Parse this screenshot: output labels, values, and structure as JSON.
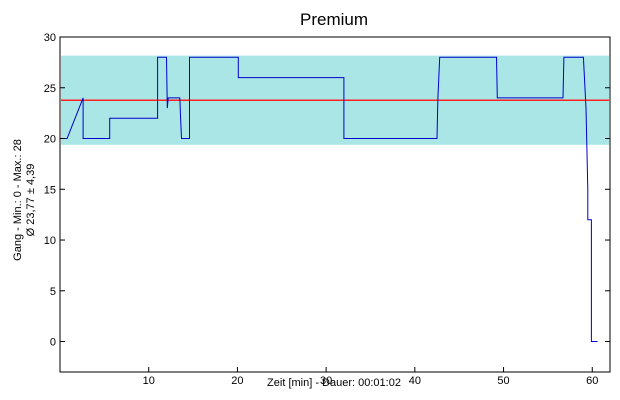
{
  "chart_data": {
    "type": "line",
    "title": "Premium",
    "xlabel": "Zeit [min] - Dauer: 00:01:02",
    "ylabel_line1": "Gang - Min.: 0 - Max.: 28",
    "ylabel_line2": "Ø 23,77 ± 4,39",
    "xlim": [
      0,
      62
    ],
    "ylim": [
      -3,
      30
    ],
    "x_ticks": [
      10,
      20,
      30,
      40,
      50,
      60
    ],
    "y_ticks": [
      0,
      5,
      10,
      15,
      20,
      25,
      30
    ],
    "x_tick_labels": [
      "10",
      "20",
      "30",
      "40",
      "50",
      "60"
    ],
    "y_tick_labels": [
      "0",
      "5",
      "10",
      "15",
      "20",
      "25",
      "30"
    ],
    "grid": false,
    "mean": 23.77,
    "std": 4.39,
    "band": [
      19.38,
      28.16
    ],
    "colors": {
      "series": "#0000cc",
      "mean": "#ff2020",
      "band": "#8fdede",
      "frame": "#000000"
    },
    "series": [
      {
        "x": [
          0,
          0,
          0.8,
          0.8,
          2.6,
          2.6,
          5.6,
          5.6,
          11.0,
          11.0,
          12.0,
          12.1,
          12.2,
          13.5,
          13.6,
          13.7,
          14.6,
          14.6,
          20.1,
          20.1,
          32.0,
          32.0,
          42.5,
          42.6,
          42.8,
          49.2,
          49.3,
          56.7,
          56.8,
          59.0,
          59.3,
          59.5,
          59.5,
          59.9,
          59.9,
          60.6
        ],
        "y": [
          19,
          20,
          20,
          20,
          24,
          20,
          20,
          22,
          22,
          28,
          28,
          23,
          24,
          24,
          22,
          20,
          20,
          28,
          28,
          26,
          26,
          20,
          20,
          24,
          28,
          28,
          24,
          24,
          28,
          28,
          23,
          15,
          12,
          12,
          0,
          0
        ]
      }
    ]
  }
}
